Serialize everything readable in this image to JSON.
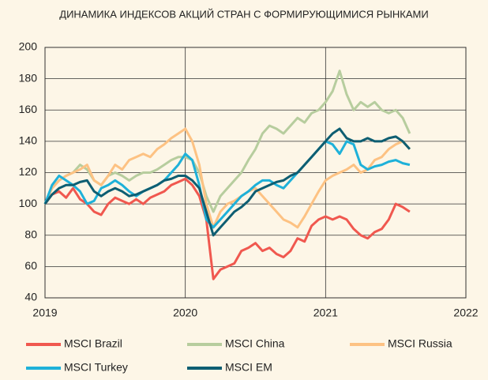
{
  "chart_data": {
    "type": "line",
    "title": "ДИНАМИКА ИНДЕКСОВ АКЦИЙ СТРАН С ФОРМИРУЮЩИМИСЯ РЫНКАМИ",
    "x": [
      2019,
      2019.05,
      2019.1,
      2019.15,
      2019.2,
      2019.25,
      2019.3,
      2019.35,
      2019.4,
      2019.45,
      2019.5,
      2019.55,
      2019.6,
      2019.65,
      2019.7,
      2019.75,
      2019.8,
      2019.85,
      2019.9,
      2019.95,
      2020,
      2020.05,
      2020.1,
      2020.15,
      2020.2,
      2020.25,
      2020.3,
      2020.35,
      2020.4,
      2020.45,
      2020.5,
      2020.55,
      2020.6,
      2020.65,
      2020.7,
      2020.75,
      2020.8,
      2020.85,
      2020.9,
      2020.95,
      2021,
      2021.05,
      2021.1,
      2021.15,
      2021.2,
      2021.25,
      2021.3,
      2021.35,
      2021.4,
      2021.45,
      2021.5,
      2021.55,
      2021.6
    ],
    "series": [
      {
        "name": "MSCI Brazil",
        "color": "#f0584f",
        "values": [
          100,
          106,
          108,
          104,
          110,
          103,
          100,
          95,
          93,
          100,
          104,
          102,
          100,
          103,
          100,
          104,
          106,
          108,
          112,
          114,
          116,
          112,
          105,
          90,
          52,
          58,
          60,
          62,
          70,
          72,
          75,
          70,
          72,
          68,
          66,
          70,
          78,
          76,
          86,
          90,
          92,
          90,
          92,
          90,
          84,
          80,
          78,
          82,
          84,
          90,
          100,
          98,
          95
        ]
      },
      {
        "name": "MSCI China",
        "color": "#b7cd9e",
        "values": [
          100,
          110,
          115,
          118,
          120,
          125,
          122,
          115,
          112,
          118,
          120,
          118,
          115,
          118,
          120,
          120,
          122,
          125,
          128,
          130,
          130,
          128,
          120,
          105,
          95,
          105,
          110,
          115,
          120,
          128,
          135,
          145,
          150,
          148,
          145,
          150,
          155,
          152,
          158,
          160,
          165,
          172,
          185,
          170,
          160,
          165,
          162,
          165,
          160,
          158,
          160,
          155,
          145
        ]
      },
      {
        "name": "MSCI Russia",
        "color": "#fdc283",
        "values": [
          100,
          110,
          115,
          118,
          120,
          122,
          125,
          115,
          112,
          118,
          125,
          122,
          128,
          130,
          132,
          130,
          135,
          138,
          142,
          145,
          148,
          140,
          125,
          100,
          85,
          95,
          100,
          102,
          105,
          108,
          110,
          105,
          100,
          95,
          90,
          88,
          85,
          92,
          100,
          108,
          115,
          118,
          120,
          122,
          125,
          120,
          122,
          128,
          130,
          135,
          138,
          140,
          135
        ]
      },
      {
        "name": "MSCI Turkey",
        "color": "#1eb1d9",
        "values": [
          100,
          112,
          118,
          115,
          112,
          108,
          100,
          102,
          110,
          112,
          115,
          112,
          108,
          105,
          108,
          110,
          112,
          115,
          120,
          125,
          132,
          128,
          112,
          90,
          85,
          90,
          95,
          100,
          105,
          108,
          112,
          115,
          115,
          112,
          110,
          115,
          120,
          125,
          130,
          135,
          140,
          138,
          132,
          140,
          138,
          125,
          122,
          124,
          125,
          127,
          128,
          126,
          125
        ]
      },
      {
        "name": "MSCI EM",
        "color": "#0e5e72",
        "values": [
          100,
          106,
          110,
          112,
          112,
          114,
          115,
          108,
          105,
          108,
          110,
          108,
          105,
          106,
          108,
          110,
          112,
          115,
          116,
          118,
          118,
          115,
          110,
          95,
          80,
          85,
          90,
          95,
          98,
          102,
          108,
          110,
          112,
          114,
          115,
          118,
          120,
          125,
          130,
          135,
          140,
          145,
          148,
          142,
          140,
          140,
          142,
          140,
          140,
          142,
          143,
          140,
          135
        ]
      }
    ],
    "xlim": [
      2019,
      2022
    ],
    "xticks": [
      2019,
      2020,
      2021,
      2022
    ],
    "ylim": [
      40,
      200
    ],
    "yticks": [
      40,
      60,
      80,
      100,
      120,
      140,
      160,
      180,
      200
    ],
    "grid": true
  }
}
